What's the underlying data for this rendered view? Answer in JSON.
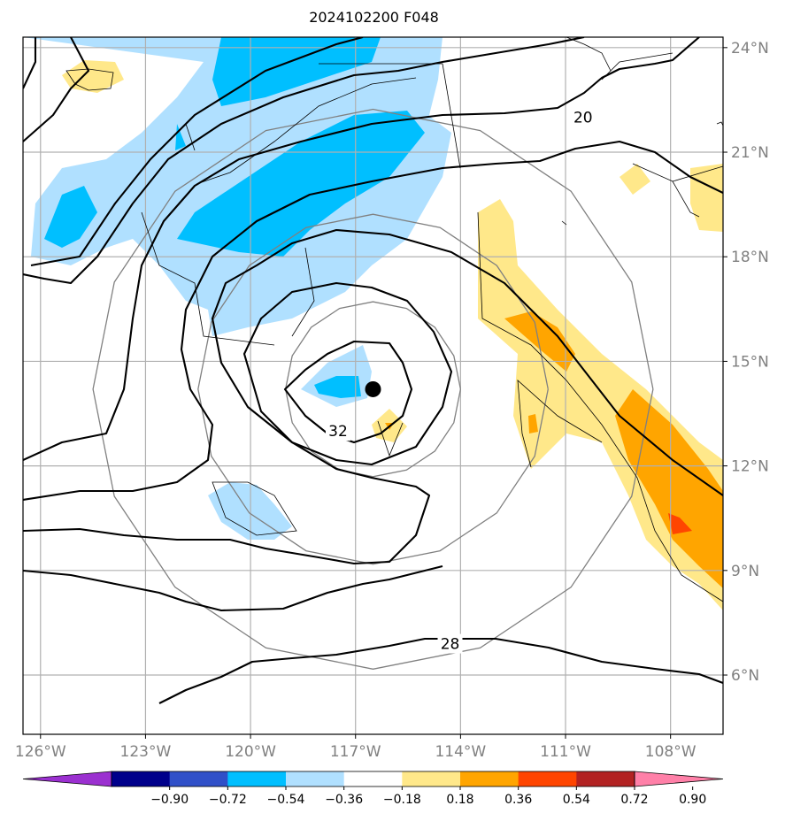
{
  "title": "2024102200 F048",
  "chart_data": {
    "type": "heatmap",
    "title": "2024102200 F048",
    "projection": "map",
    "lon_range": [
      -126.5,
      -106.5
    ],
    "lat_range": [
      4.3,
      24.3
    ],
    "x_ticks": [
      {
        "value": -126,
        "label": "126°W"
      },
      {
        "value": -123,
        "label": "123°W"
      },
      {
        "value": -120,
        "label": "120°W"
      },
      {
        "value": -117,
        "label": "117°W"
      },
      {
        "value": -114,
        "label": "114°W"
      },
      {
        "value": -111,
        "label": "111°W"
      },
      {
        "value": -108,
        "label": "108°W"
      }
    ],
    "y_ticks": [
      {
        "value": 24,
        "label": "24°N"
      },
      {
        "value": 21,
        "label": "21°N"
      },
      {
        "value": 18,
        "label": "18°N"
      },
      {
        "value": 15,
        "label": "15°N"
      },
      {
        "value": 12,
        "label": "12°N"
      },
      {
        "value": 9,
        "label": "9°N"
      },
      {
        "value": 6,
        "label": "6°N"
      }
    ],
    "grid": true,
    "storm_center": {
      "lon": -116.5,
      "lat": 14.2
    },
    "range_rings_deg": [
      2.5,
      5,
      8
    ],
    "contour_labels": [
      {
        "value": "20",
        "lon": -110.5,
        "lat": 22.0
      },
      {
        "value": "32",
        "lon": -117.5,
        "lat": 13.0
      },
      {
        "value": "28",
        "lon": -114.3,
        "lat": 6.9
      }
    ],
    "colorbar": {
      "levels": [
        -0.9,
        -0.72,
        -0.54,
        -0.36,
        -0.18,
        0.18,
        0.36,
        0.54,
        0.72,
        0.9
      ],
      "labels": [
        "−0.90",
        "−0.72",
        "−0.54",
        "−0.36",
        "−0.18",
        "0.18",
        "0.36",
        "0.54",
        "0.72",
        "0.90"
      ],
      "colors": [
        "#9b30d0",
        "#00008b",
        "#3050c8",
        "#00bfff",
        "#b0e0ff",
        "#ffffff",
        "#ffe88a",
        "#ffa500",
        "#ff4500",
        "#b22222",
        "#ff80a8"
      ],
      "extend": "both"
    },
    "colors": {
      "ring": "#808080",
      "grid": "#b0b0b0",
      "contour": "#000000",
      "tick_label": "#808080"
    }
  }
}
